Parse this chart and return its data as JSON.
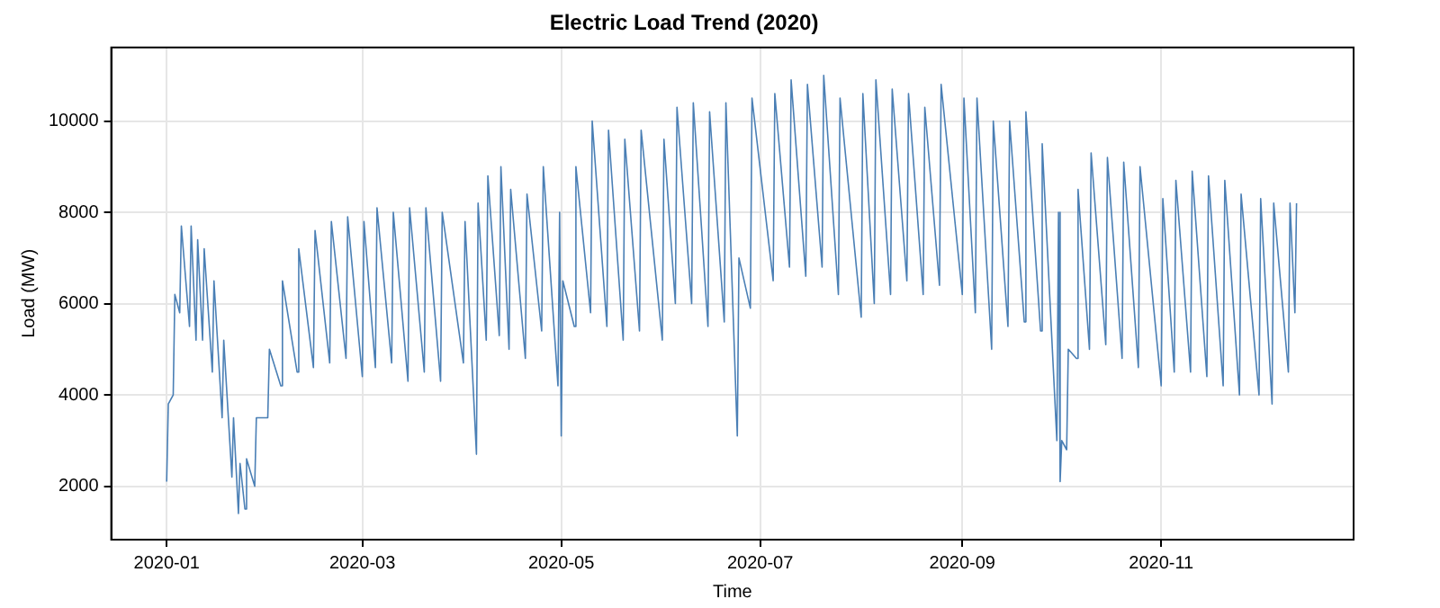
{
  "chart_data": {
    "type": "line",
    "title": "Electric Load Trend (2020)",
    "xlabel": "Time",
    "ylabel": "Load (MW)",
    "x": [
      "2020-01-01T00:00",
      "2020-01-01T12:00",
      "2020-01-03T00:00",
      "2020-01-03T12:00",
      "2020-01-05T00:00",
      "2020-01-05T12:00",
      "2020-01-08T00:00",
      "2020-01-08T12:00",
      "2020-01-10T00:00",
      "2020-01-10T12:00",
      "2020-01-12T00:00",
      "2020-01-12T12:00",
      "2020-01-15T00:00",
      "2020-01-15T12:00",
      "2020-01-18T00:00",
      "2020-01-18T12:00",
      "2020-01-21T00:00",
      "2020-01-21T12:00",
      "2020-01-23T00:00",
      "2020-01-23T12:00",
      "2020-01-25T00:00",
      "2020-01-25T12:00",
      "2020-01-28T00:00",
      "2020-01-28T12:00",
      "2020-02-01T00:00",
      "2020-02-01T12:00",
      "2020-02-05T00:00",
      "2020-02-05T12:00",
      "2020-02-10T00:00",
      "2020-02-10T12:00",
      "2020-02-15T00:00",
      "2020-02-15T12:00",
      "2020-02-20T00:00",
      "2020-02-20T12:00",
      "2020-02-25T00:00",
      "2020-02-25T12:00",
      "2020-03-01T00:00",
      "2020-03-01T12:00",
      "2020-03-05T00:00",
      "2020-03-05T12:00",
      "2020-03-10T00:00",
      "2020-03-10T12:00",
      "2020-03-15T00:00",
      "2020-03-15T12:00",
      "2020-03-20T00:00",
      "2020-03-20T12:00",
      "2020-03-25T00:00",
      "2020-03-25T12:00",
      "2020-04-01T00:00",
      "2020-04-01T12:00",
      "2020-04-05T00:00",
      "2020-04-05T12:00",
      "2020-04-08T00:00",
      "2020-04-08T12:00",
      "2020-04-12T00:00",
      "2020-04-12T12:00",
      "2020-04-15T00:00",
      "2020-04-15T12:00",
      "2020-04-20T00:00",
      "2020-04-20T12:00",
      "2020-04-25T00:00",
      "2020-04-25T12:00",
      "2020-04-30T00:00",
      "2020-04-30T12:00",
      "2020-05-01T00:00",
      "2020-05-01T12:00",
      "2020-05-05T00:00",
      "2020-05-05T12:00",
      "2020-05-10T00:00",
      "2020-05-10T12:00",
      "2020-05-15T00:00",
      "2020-05-15T12:00",
      "2020-05-20T00:00",
      "2020-05-20T12:00",
      "2020-05-25T00:00",
      "2020-05-25T12:00",
      "2020-06-01T00:00",
      "2020-06-01T12:00",
      "2020-06-05T00:00",
      "2020-06-05T12:00",
      "2020-06-10T00:00",
      "2020-06-10T12:00",
      "2020-06-15T00:00",
      "2020-06-15T12:00",
      "2020-06-20T00:00",
      "2020-06-20T12:00",
      "2020-06-24T00:00",
      "2020-06-24T12:00",
      "2020-06-28T00:00",
      "2020-06-28T12:00",
      "2020-07-05T00:00",
      "2020-07-05T12:00",
      "2020-07-10T00:00",
      "2020-07-10T12:00",
      "2020-07-15T00:00",
      "2020-07-15T12:00",
      "2020-07-20T00:00",
      "2020-07-20T12:00",
      "2020-07-25T00:00",
      "2020-07-25T12:00",
      "2020-08-01T00:00",
      "2020-08-01T12:00",
      "2020-08-05T00:00",
      "2020-08-05T12:00",
      "2020-08-10T00:00",
      "2020-08-10T12:00",
      "2020-08-15T00:00",
      "2020-08-15T12:00",
      "2020-08-20T00:00",
      "2020-08-20T12:00",
      "2020-08-25T00:00",
      "2020-08-25T12:00",
      "2020-09-01T00:00",
      "2020-09-01T12:00",
      "2020-09-05T00:00",
      "2020-09-05T12:00",
      "2020-09-10T00:00",
      "2020-09-10T12:00",
      "2020-09-15T00:00",
      "2020-09-15T12:00",
      "2020-09-20T00:00",
      "2020-09-20T12:00",
      "2020-09-25T00:00",
      "2020-09-25T12:00",
      "2020-09-30T00:00",
      "2020-09-30T12:00",
      "2020-10-01T00:00",
      "2020-10-01T12:00",
      "2020-10-03T00:00",
      "2020-10-03T12:00",
      "2020-10-06T00:00",
      "2020-10-06T12:00",
      "2020-10-10T00:00",
      "2020-10-10T12:00",
      "2020-10-15T00:00",
      "2020-10-15T12:00",
      "2020-10-20T00:00",
      "2020-10-20T12:00",
      "2020-10-25T00:00",
      "2020-10-25T12:00",
      "2020-11-01T00:00",
      "2020-11-01T12:00",
      "2020-11-05T00:00",
      "2020-11-05T12:00",
      "2020-11-10T00:00",
      "2020-11-10T12:00",
      "2020-11-15T00:00",
      "2020-11-15T12:00",
      "2020-11-20T00:00",
      "2020-11-20T12:00",
      "2020-11-25T00:00",
      "2020-11-25T12:00",
      "2020-12-01T00:00",
      "2020-12-01T12:00",
      "2020-12-05T00:00",
      "2020-12-05T12:00",
      "2020-12-10T00:00",
      "2020-12-10T12:00",
      "2020-12-12T00:00",
      "2020-12-12T12:00"
    ],
    "series": [
      {
        "color": "#4a7fb5",
        "values": [
          2100,
          3800,
          4000,
          6200,
          5800,
          7700,
          5500,
          7700,
          5200,
          7400,
          5200,
          7200,
          4500,
          6500,
          3500,
          5200,
          2200,
          3500,
          1400,
          2500,
          1500,
          2600,
          2000,
          3500,
          3500,
          5000,
          4200,
          6500,
          4500,
          7200,
          4600,
          7600,
          4700,
          7800,
          4800,
          7900,
          4400,
          7800,
          4600,
          8100,
          4700,
          8000,
          4300,
          8100,
          4500,
          8100,
          4300,
          8000,
          4700,
          7800,
          2700,
          8200,
          5200,
          8800,
          5300,
          9000,
          5000,
          8500,
          4800,
          8400,
          5400,
          9000,
          4200,
          8000,
          3100,
          6500,
          5500,
          9000,
          5800,
          10000,
          5500,
          9800,
          5200,
          9600,
          5400,
          9800,
          5200,
          9600,
          6000,
          10300,
          6000,
          10400,
          5500,
          10200,
          5600,
          10400,
          3100,
          7000,
          5900,
          10500,
          6500,
          10600,
          6800,
          10900,
          6600,
          10800,
          6800,
          11000,
          6200,
          10500,
          5700,
          10600,
          6000,
          10900,
          6200,
          10700,
          6500,
          10600,
          6200,
          10300,
          6400,
          10800,
          6200,
          10500,
          5800,
          10500,
          5000,
          10000,
          5500,
          10000,
          5600,
          10200,
          5400,
          9500,
          3000,
          8000,
          2100,
          3000,
          2800,
          5000,
          4800,
          8500,
          5000,
          9300,
          5100,
          9200,
          4800,
          9100,
          4600,
          9000,
          4200,
          8300,
          4500,
          8700,
          4500,
          8900,
          4400,
          8800,
          4200,
          8700,
          4000,
          8400,
          4000,
          8300,
          3800,
          8200,
          4500,
          8200,
          5800,
          8200
        ]
      }
    ],
    "xlim": [
      "2019-12-15",
      "2020-12-30"
    ],
    "xticks": [
      {
        "value": "2020-01-01",
        "label": "2020-01"
      },
      {
        "value": "2020-03-01",
        "label": "2020-03"
      },
      {
        "value": "2020-05-01",
        "label": "2020-05"
      },
      {
        "value": "2020-07-01",
        "label": "2020-07"
      },
      {
        "value": "2020-09-01",
        "label": "2020-09"
      },
      {
        "value": "2020-11-01",
        "label": "2020-11"
      }
    ],
    "ylim": [
      830,
      11610
    ],
    "yticks": [
      2000,
      4000,
      6000,
      8000,
      10000
    ],
    "grid": true,
    "legend": false,
    "marker": "none",
    "line_style": "solid"
  }
}
